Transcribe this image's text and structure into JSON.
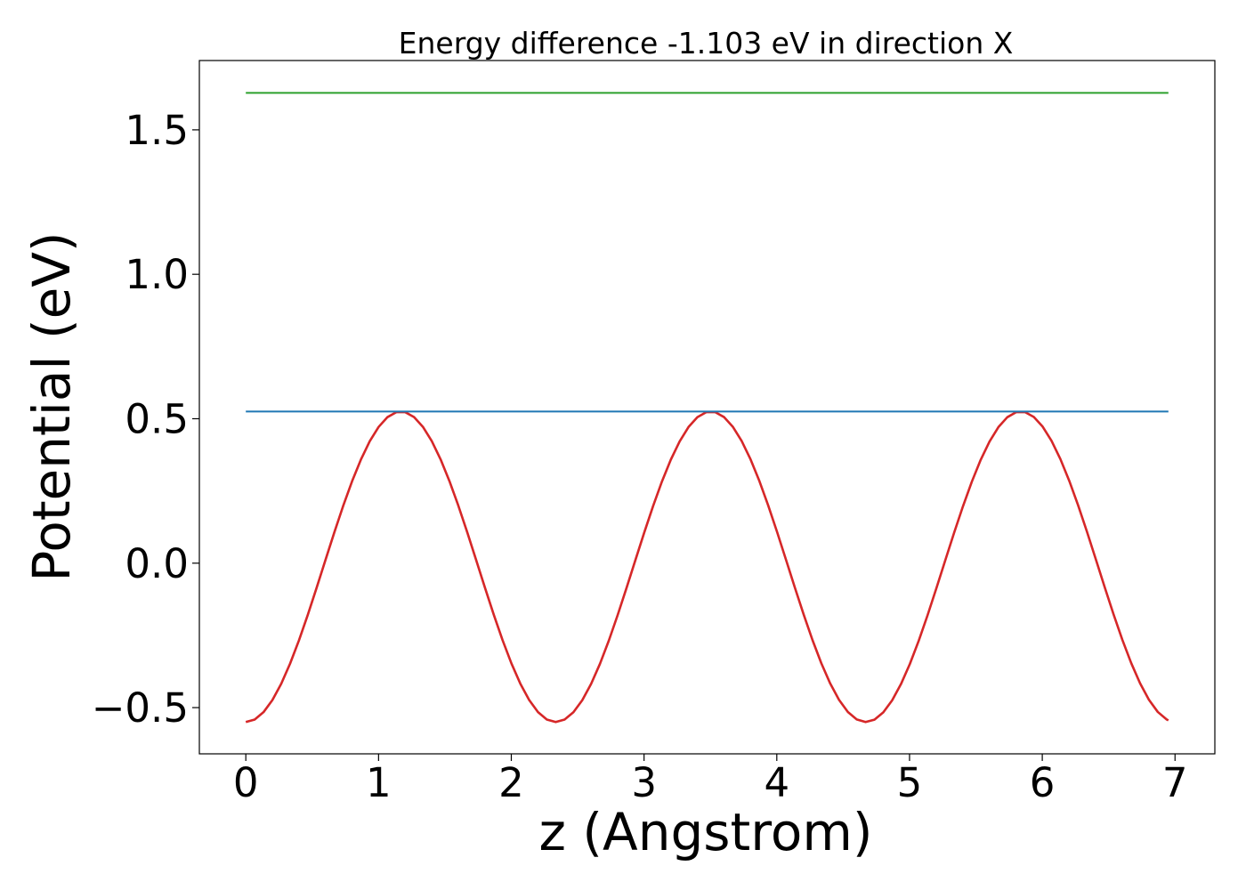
{
  "chart_data": {
    "type": "line",
    "title": "Energy difference -1.103 eV in direction X",
    "xlabel": "z (Angstrom)",
    "ylabel": "Potential (eV)",
    "xlim": [
      -0.35,
      7.3
    ],
    "ylim": [
      -0.66,
      1.74
    ],
    "grid": false,
    "legend": "none",
    "x_ticks": [
      0,
      1,
      2,
      3,
      4,
      5,
      6,
      7
    ],
    "x_tick_labels": [
      "0",
      "1",
      "2",
      "3",
      "4",
      "5",
      "6",
      "7"
    ],
    "y_ticks": [
      -0.5,
      0.0,
      0.5,
      1.0,
      1.5
    ],
    "y_tick_labels": [
      "−0.5",
      "0.0",
      "0.5",
      "1.0",
      "1.5"
    ],
    "series": [
      {
        "color": "#d62728",
        "style": "cosine",
        "x_start": 0.0,
        "x_end": 6.95,
        "x_step": 0.0667,
        "mean": -0.0125,
        "amplitude": 0.5375,
        "period": 2.335,
        "min_at": 0.0
      },
      {
        "color": "#1f77b4",
        "style": "constant",
        "x": [
          0.0,
          6.95
        ],
        "y": [
          0.525,
          0.525
        ]
      },
      {
        "color": "#2ca02c",
        "style": "constant",
        "x": [
          0.0,
          6.95
        ],
        "y": [
          1.628,
          1.628
        ]
      }
    ]
  }
}
